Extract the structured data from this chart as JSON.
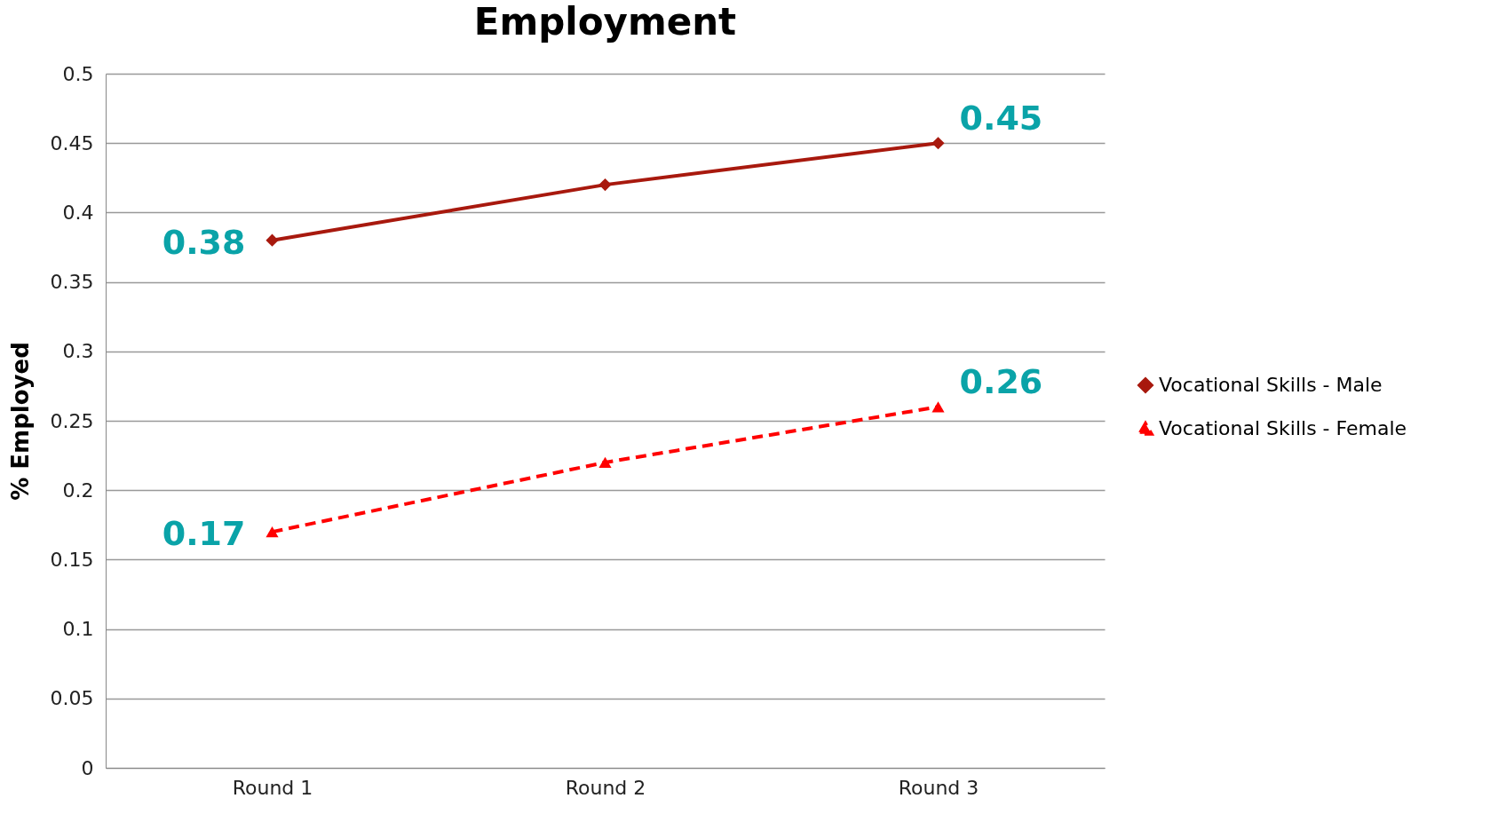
{
  "chart_data": {
    "type": "line",
    "title": "Employment",
    "ylabel": "% Employed",
    "categories": [
      "Round 1",
      "Round 2",
      "Round 3"
    ],
    "series": [
      {
        "name": "Vocational Skills - Male",
        "color": "#a8190e",
        "values": [
          0.38,
          0.42,
          0.45
        ],
        "value_labels": [
          "0.38",
          null,
          "0.45"
        ],
        "marker": "diamond",
        "line_style": "solid"
      },
      {
        "name": "Vocational Skills - Female",
        "color": "#ff0000",
        "values": [
          0.17,
          0.22,
          0.26
        ],
        "value_labels": [
          "0.17",
          null,
          "0.26"
        ],
        "marker": "triangle",
        "line_style": "dashed"
      }
    ],
    "ylim": [
      0,
      0.5
    ],
    "yticks": [
      0,
      0.05,
      0.1,
      0.15,
      0.2,
      0.25,
      0.3,
      0.35,
      0.4,
      0.45,
      0.5
    ],
    "grid": "y",
    "legend": "right"
  }
}
